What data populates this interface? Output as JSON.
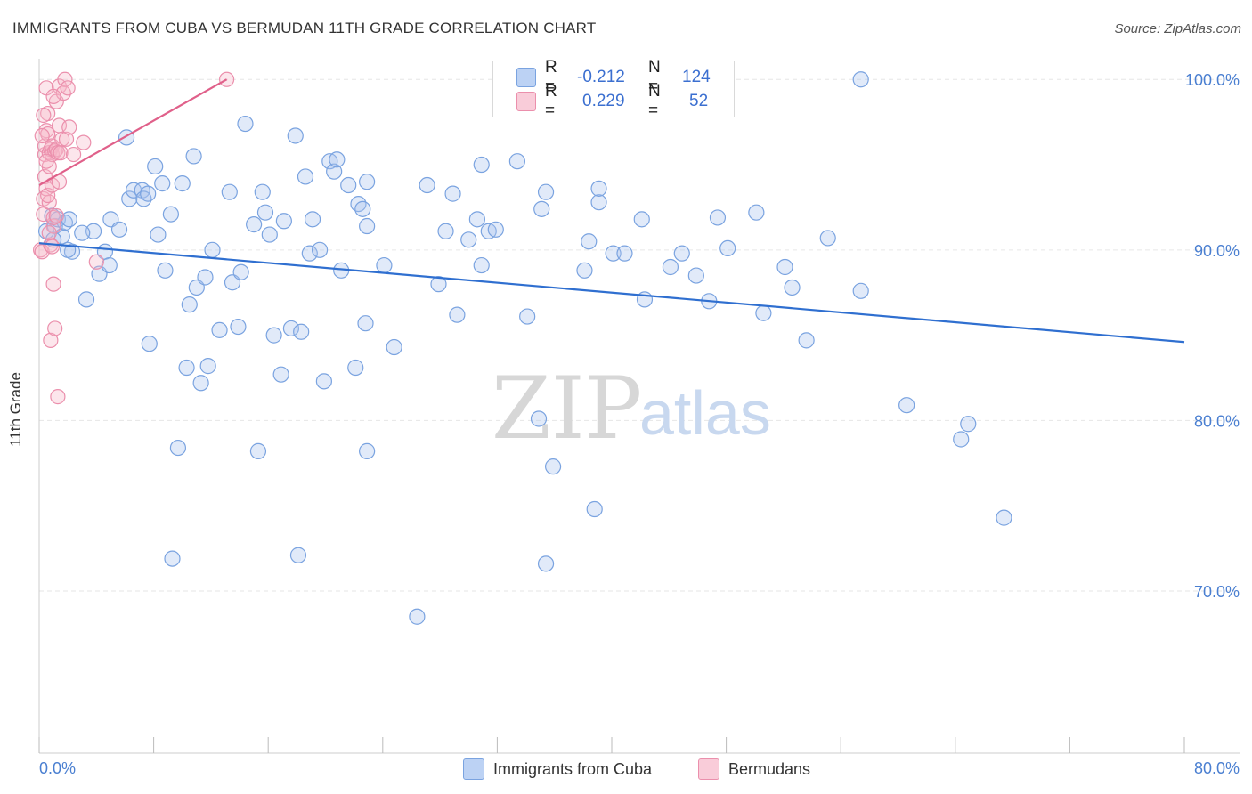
{
  "header": {
    "title": "IMMIGRANTS FROM CUBA VS BERMUDAN 11TH GRADE CORRELATION CHART",
    "source": "Source: ZipAtlas.com"
  },
  "watermark": {
    "zip": "ZIP",
    "atlas": "atlas"
  },
  "stats_box": {
    "rows": [
      {
        "r_label": "R =",
        "r_value": "-0.212",
        "n_label": "N =",
        "n_value": "124",
        "color": "#a9c4ef"
      },
      {
        "r_label": "R =",
        "r_value": "0.229",
        "n_label": "N =",
        "n_value": "52",
        "color": "#f5b7c9"
      }
    ]
  },
  "legend": {
    "items": [
      {
        "label": "Immigrants from Cuba",
        "color": "#a9c4ef"
      },
      {
        "label": "Bermudans",
        "color": "#f5b7c9"
      }
    ]
  },
  "colors": {
    "cuba_fill": "rgba(169,196,239,0.35)",
    "cuba_stroke": "#7aa3e0",
    "cuba_line": "#2f6fd0",
    "berm_fill": "rgba(245,183,201,0.35)",
    "berm_stroke": "#eb8fac",
    "berm_line": "#e0608a",
    "grid": "#e6e6e6",
    "tick_text": "#4a7fd1"
  },
  "chart_data": {
    "type": "scatter",
    "title": "IMMIGRANTS FROM CUBA VS BERMUDAN 11TH GRADE CORRELATION CHART",
    "xlabel": "",
    "ylabel": "11th Grade",
    "xlim": [
      0,
      80
    ],
    "ylim": [
      60.5,
      100.9
    ],
    "x_tick_labels": [
      "0.0%",
      "80.0%"
    ],
    "y_ticks": [
      70,
      80,
      90,
      100
    ],
    "y_tick_labels": [
      "70.0%",
      "80.0%",
      "90.0%",
      "100.0%"
    ],
    "grid": true,
    "legend_position": "bottom-center",
    "series": [
      {
        "name": "Immigrants from Cuba",
        "trend": {
          "x": [
            0.0,
            80.0
          ],
          "y": [
            90.4,
            84.6
          ]
        },
        "points": [
          [
            0.5,
            91.1
          ],
          [
            0.9,
            92.0
          ],
          [
            1.1,
            91.4
          ],
          [
            1.3,
            91.8
          ],
          [
            1.6,
            90.8
          ],
          [
            1.8,
            91.6
          ],
          [
            2.1,
            91.8
          ],
          [
            2.3,
            89.9
          ],
          [
            3.3,
            87.1
          ],
          [
            3.8,
            91.1
          ],
          [
            4.2,
            88.6
          ],
          [
            4.6,
            89.9
          ],
          [
            4.9,
            89.1
          ],
          [
            5.0,
            91.8
          ],
          [
            5.6,
            91.2
          ],
          [
            6.1,
            96.6
          ],
          [
            6.3,
            93.0
          ],
          [
            6.6,
            93.5
          ],
          [
            7.2,
            93.5
          ],
          [
            7.3,
            93.0
          ],
          [
            7.6,
            93.3
          ],
          [
            7.7,
            84.5
          ],
          [
            8.1,
            94.9
          ],
          [
            8.3,
            90.9
          ],
          [
            8.6,
            93.9
          ],
          [
            8.8,
            88.8
          ],
          [
            9.2,
            92.1
          ],
          [
            9.3,
            71.9
          ],
          [
            9.7,
            78.4
          ],
          [
            10.0,
            93.9
          ],
          [
            10.3,
            83.1
          ],
          [
            10.5,
            86.8
          ],
          [
            10.8,
            95.5
          ],
          [
            11.0,
            87.8
          ],
          [
            11.3,
            82.2
          ],
          [
            11.6,
            88.4
          ],
          [
            11.8,
            83.2
          ],
          [
            12.1,
            90.0
          ],
          [
            12.6,
            85.3
          ],
          [
            13.3,
            93.4
          ],
          [
            13.5,
            88.1
          ],
          [
            13.9,
            85.5
          ],
          [
            14.1,
            88.7
          ],
          [
            14.4,
            97.4
          ],
          [
            15.0,
            91.5
          ],
          [
            15.3,
            78.2
          ],
          [
            15.6,
            93.4
          ],
          [
            15.8,
            92.2
          ],
          [
            16.1,
            90.9
          ],
          [
            16.4,
            85.0
          ],
          [
            16.9,
            82.7
          ],
          [
            17.1,
            91.7
          ],
          [
            17.6,
            85.4
          ],
          [
            17.9,
            96.7
          ],
          [
            18.1,
            72.1
          ],
          [
            18.3,
            85.2
          ],
          [
            18.6,
            94.3
          ],
          [
            18.9,
            89.8
          ],
          [
            19.1,
            91.8
          ],
          [
            19.6,
            90.0
          ],
          [
            19.9,
            82.3
          ],
          [
            20.3,
            95.2
          ],
          [
            20.6,
            94.6
          ],
          [
            20.8,
            95.3
          ],
          [
            21.1,
            88.8
          ],
          [
            21.6,
            93.8
          ],
          [
            22.1,
            83.1
          ],
          [
            22.3,
            92.7
          ],
          [
            22.6,
            92.4
          ],
          [
            22.9,
            94.0
          ],
          [
            22.8,
            85.7
          ],
          [
            22.9,
            91.4
          ],
          [
            22.9,
            78.2
          ],
          [
            24.1,
            89.1
          ],
          [
            24.8,
            84.3
          ],
          [
            26.4,
            68.5
          ],
          [
            27.1,
            93.8
          ],
          [
            27.9,
            88.0
          ],
          [
            28.4,
            91.1
          ],
          [
            28.9,
            93.3
          ],
          [
            29.2,
            86.2
          ],
          [
            30.0,
            90.6
          ],
          [
            30.6,
            91.8
          ],
          [
            30.9,
            89.1
          ],
          [
            30.9,
            95.0
          ],
          [
            31.4,
            91.1
          ],
          [
            31.9,
            91.2
          ],
          [
            33.4,
            95.2
          ],
          [
            34.1,
            86.1
          ],
          [
            34.9,
            80.1
          ],
          [
            35.1,
            92.4
          ],
          [
            35.4,
            93.4
          ],
          [
            35.4,
            71.6
          ],
          [
            35.9,
            77.3
          ],
          [
            38.1,
            88.8
          ],
          [
            38.4,
            90.5
          ],
          [
            38.8,
            74.8
          ],
          [
            39.1,
            92.8
          ],
          [
            39.1,
            93.6
          ],
          [
            40.1,
            89.8
          ],
          [
            40.9,
            89.8
          ],
          [
            42.1,
            91.8
          ],
          [
            42.3,
            87.1
          ],
          [
            44.1,
            89.0
          ],
          [
            44.9,
            89.8
          ],
          [
            45.9,
            88.5
          ],
          [
            46.8,
            87.0
          ],
          [
            47.4,
            91.9
          ],
          [
            48.1,
            90.1
          ],
          [
            50.1,
            92.2
          ],
          [
            50.6,
            86.3
          ],
          [
            52.1,
            89.0
          ],
          [
            52.6,
            87.8
          ],
          [
            53.6,
            84.7
          ],
          [
            55.1,
            90.7
          ],
          [
            57.4,
            100.0
          ],
          [
            57.4,
            87.6
          ],
          [
            60.6,
            80.9
          ],
          [
            64.4,
            78.9
          ],
          [
            64.9,
            79.8
          ],
          [
            67.4,
            74.3
          ],
          [
            1.0,
            90.6
          ],
          [
            2.0,
            90.0
          ],
          [
            3.0,
            91.0
          ]
        ]
      },
      {
        "name": "Bermudans",
        "trend": {
          "x": [
            0.0,
            13.1
          ],
          "y": [
            93.8,
            100.0
          ]
        },
        "points": [
          [
            0.1,
            90.0
          ],
          [
            0.2,
            89.9
          ],
          [
            0.3,
            93.0
          ],
          [
            0.3,
            92.1
          ],
          [
            0.4,
            95.6
          ],
          [
            0.4,
            94.3
          ],
          [
            0.4,
            96.1
          ],
          [
            0.5,
            97.0
          ],
          [
            0.5,
            99.5
          ],
          [
            0.5,
            93.6
          ],
          [
            0.6,
            98.0
          ],
          [
            0.6,
            96.8
          ],
          [
            0.7,
            92.8
          ],
          [
            0.7,
            95.7
          ],
          [
            0.7,
            94.9
          ],
          [
            0.8,
            95.9
          ],
          [
            0.8,
            90.3
          ],
          [
            0.8,
            84.7
          ],
          [
            0.9,
            96.1
          ],
          [
            0.9,
            95.6
          ],
          [
            0.9,
            90.2
          ],
          [
            1.0,
            91.4
          ],
          [
            1.0,
            91.9
          ],
          [
            1.0,
            88.0
          ],
          [
            1.1,
            95.8
          ],
          [
            1.1,
            85.4
          ],
          [
            1.2,
            95.9
          ],
          [
            1.2,
            98.7
          ],
          [
            1.3,
            95.7
          ],
          [
            1.3,
            81.4
          ],
          [
            1.4,
            99.6
          ],
          [
            1.4,
            97.3
          ],
          [
            1.5,
            95.7
          ],
          [
            1.6,
            96.5
          ],
          [
            1.7,
            99.2
          ],
          [
            1.8,
            100.0
          ],
          [
            1.9,
            96.5
          ],
          [
            2.0,
            99.5
          ],
          [
            2.1,
            97.2
          ],
          [
            2.4,
            95.6
          ],
          [
            3.1,
            96.3
          ],
          [
            4.0,
            89.3
          ],
          [
            13.1,
            100.0
          ],
          [
            0.6,
            93.2
          ],
          [
            0.9,
            93.8
          ],
          [
            1.2,
            92.0
          ],
          [
            1.4,
            94.0
          ],
          [
            0.2,
            96.7
          ],
          [
            0.3,
            97.9
          ],
          [
            0.5,
            95.2
          ],
          [
            0.7,
            91.0
          ],
          [
            1.0,
            99.0
          ]
        ]
      }
    ]
  }
}
